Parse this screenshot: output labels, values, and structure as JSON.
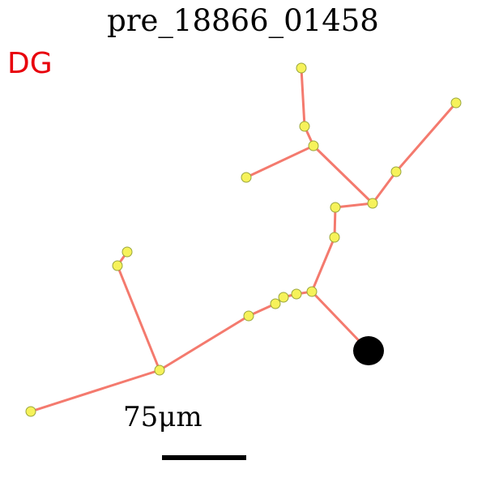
{
  "title": "pre_18866_01458",
  "region_label": "DG",
  "scale_bar": {
    "label": "75μm"
  },
  "colors": {
    "region": "#e8000b",
    "branch": "#f47a6e",
    "node_fill": "#f6f25a",
    "node_stroke": "#9aa63c",
    "soma": "#000000",
    "scale_bar": "#000000"
  }
}
